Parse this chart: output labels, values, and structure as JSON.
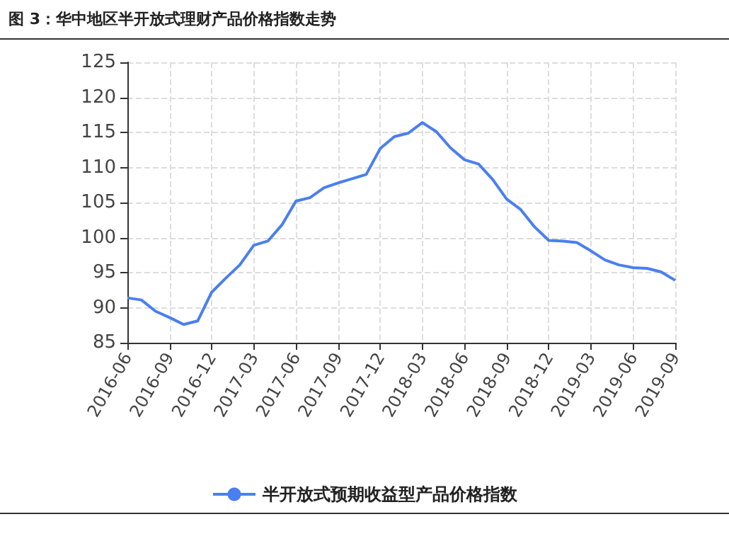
{
  "chart_data": {
    "type": "line",
    "title": "图 3：华中地区半开放式理财产品价格指数走势",
    "categories": [
      "2016-06",
      null,
      null,
      "2016-09",
      null,
      null,
      "2016-12",
      null,
      null,
      "2017-03",
      null,
      null,
      "2017-06",
      null,
      null,
      "2017-09",
      null,
      null,
      "2017-12",
      null,
      null,
      "2018-03",
      null,
      null,
      "2018-06",
      null,
      null,
      "2018-09",
      null,
      null,
      "2018-12",
      null,
      null,
      "2019-03",
      null,
      null,
      "2019-06",
      null,
      null,
      "2019-09"
    ],
    "series": [
      {
        "name": "半开放式预期收益型产品价格指数",
        "color": "#4a7ff0",
        "values": [
          91.4,
          91.1,
          89.5,
          88.6,
          87.6,
          88.1,
          92.2,
          94.2,
          96.1,
          98.9,
          99.5,
          101.8,
          105.2,
          105.7,
          107.1,
          107.8,
          108.4,
          109.0,
          112.7,
          114.4,
          114.9,
          116.4,
          115.1,
          112.8,
          111.1,
          110.5,
          108.3,
          105.5,
          104.0,
          101.5,
          99.6,
          99.5,
          99.3,
          98.1,
          96.8,
          96.1,
          95.7,
          95.6,
          95.1,
          93.9
        ]
      }
    ],
    "ylim": [
      85,
      125
    ],
    "yticks": [
      85,
      90,
      95,
      100,
      105,
      110,
      115,
      120,
      125
    ],
    "grid": true,
    "legend": "bottom",
    "line_style": "solid"
  }
}
